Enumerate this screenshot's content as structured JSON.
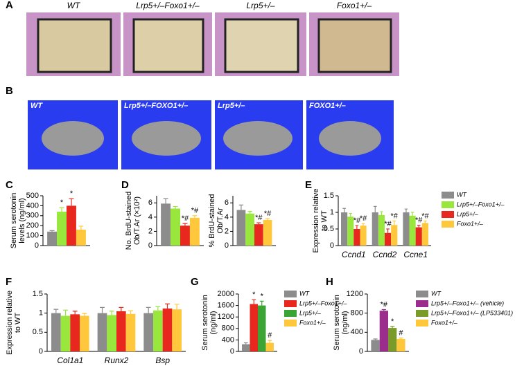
{
  "panel_a": {
    "label": "A",
    "captions": [
      "WT",
      "Lrp5+/–Foxo1+/–",
      "Lrp5+/–",
      "Foxo1+/–"
    ]
  },
  "panel_b": {
    "label": "B",
    "captions": [
      "WT",
      "Lrp5+/–FOXO1+/–",
      "Lrp5+/–",
      "FOXO1+/–"
    ]
  },
  "chart_data": [
    {
      "type": "bar",
      "panel": "C",
      "ylabel": [
        "Serum serotonin",
        "levels (ng/ml)"
      ],
      "ylim": [
        0,
        500
      ],
      "yticks": [
        0,
        100,
        200,
        300,
        400,
        500
      ],
      "series": [
        {
          "color": "#8c8c8c",
          "values": [
            140
          ],
          "errors": [
            10
          ],
          "significance": [
            null
          ]
        },
        {
          "color": "#99e63c",
          "values": [
            340
          ],
          "errors": [
            40
          ],
          "significance": [
            "*"
          ]
        },
        {
          "color": "#e8281e",
          "values": [
            400
          ],
          "errors": [
            70
          ],
          "significance": [
            "*"
          ]
        },
        {
          "color": "#ffc83c",
          "values": [
            160
          ],
          "errors": [
            35
          ],
          "significance": [
            null
          ]
        }
      ]
    },
    {
      "type": "bar",
      "panel": "D",
      "ylabel": [
        "No. BrdU-stained",
        "Ob/T.Ar (×10²)"
      ],
      "ylim": [
        0,
        7
      ],
      "yticks": [
        0,
        2,
        4,
        6
      ],
      "series": [
        {
          "color": "#8c8c8c",
          "values": [
            5.9
          ],
          "errors": [
            0.7
          ],
          "significance": [
            null
          ]
        },
        {
          "color": "#99e63c",
          "values": [
            5.2
          ],
          "errors": [
            0.3
          ],
          "significance": [
            null
          ]
        },
        {
          "color": "#e8281e",
          "values": [
            2.8
          ],
          "errors": [
            0.3
          ],
          "significance": [
            "*#"
          ]
        },
        {
          "color": "#ffc83c",
          "values": [
            3.9
          ],
          "errors": [
            0.3
          ],
          "significance": [
            "*#"
          ]
        }
      ]
    },
    {
      "type": "bar",
      "ylabel": [
        "% BrdU-stained",
        "Ob/T.Ar"
      ],
      "ylim": [
        0,
        7
      ],
      "yticks": [
        0,
        2,
        4,
        6
      ],
      "series": [
        {
          "color": "#8c8c8c",
          "values": [
            5.0
          ],
          "errors": [
            0.7
          ],
          "significance": [
            null
          ]
        },
        {
          "color": "#99e63c",
          "values": [
            4.5
          ],
          "errors": [
            0.3
          ],
          "significance": [
            null
          ]
        },
        {
          "color": "#e8281e",
          "values": [
            3.0
          ],
          "errors": [
            0.2
          ],
          "significance": [
            "*#"
          ]
        },
        {
          "color": "#ffc83c",
          "values": [
            3.6
          ],
          "errors": [
            0.2
          ],
          "significance": [
            "*#"
          ]
        }
      ]
    },
    {
      "type": "bar",
      "panel": "E",
      "ylabel": [
        "Expression relative",
        "to WT"
      ],
      "ylim": [
        0,
        1.5
      ],
      "yticks": [
        0,
        0.5,
        1,
        1.5
      ],
      "categories": [
        "Ccnd1",
        "Ccnd2",
        "Ccne1"
      ],
      "series": [
        {
          "name": "WT",
          "color": "#8c8c8c",
          "values": [
            1.0,
            1.0,
            1.0
          ],
          "errors": [
            0.12,
            0.18,
            0.1
          ],
          "significance": [
            null,
            null,
            null
          ]
        },
        {
          "name": "Lrp5+/–Foxo1+/–",
          "color": "#99e63c",
          "values": [
            0.87,
            0.92,
            0.9
          ],
          "errors": [
            0.1,
            0.1,
            0.1
          ],
          "significance": [
            null,
            null,
            null
          ]
        },
        {
          "name": "Lrp5+/–",
          "color": "#e8281e",
          "values": [
            0.5,
            0.38,
            0.55
          ],
          "errors": [
            0.1,
            0.12,
            0.06
          ],
          "significance": [
            "*#",
            "*#",
            "*#"
          ]
        },
        {
          "name": "Foxo1+/–",
          "color": "#ffc83c",
          "values": [
            0.6,
            0.62,
            0.68
          ],
          "errors": [
            0.06,
            0.12,
            0.06
          ],
          "significance": [
            "*#",
            "*#",
            "*#"
          ]
        }
      ]
    },
    {
      "type": "bar",
      "panel": "F",
      "ylabel": [
        "Expression relative",
        "to WT"
      ],
      "ylim": [
        0,
        1.5
      ],
      "yticks": [
        0,
        0.5,
        1,
        1.5
      ],
      "categories": [
        "Col1a1",
        "Runx2",
        "Bsp"
      ],
      "series": [
        {
          "color": "#8c8c8c",
          "values": [
            1.0,
            1.0,
            1.0
          ],
          "errors": [
            0.1,
            0.15,
            0.15
          ],
          "significance": [
            null,
            null,
            null
          ]
        },
        {
          "color": "#99e63c",
          "values": [
            0.93,
            0.95,
            1.07
          ],
          "errors": [
            0.15,
            0.1,
            0.1
          ],
          "significance": [
            null,
            null,
            null
          ]
        },
        {
          "color": "#e8281e",
          "values": [
            0.97,
            1.05,
            1.12
          ],
          "errors": [
            0.08,
            0.1,
            0.12
          ],
          "significance": [
            null,
            null,
            null
          ]
        },
        {
          "color": "#ffc83c",
          "values": [
            0.93,
            0.98,
            1.1
          ],
          "errors": [
            0.06,
            0.08,
            0.13
          ],
          "significance": [
            null,
            null,
            null
          ]
        }
      ]
    },
    {
      "type": "bar",
      "panel": "G",
      "ylabel": [
        "Serum serotonin",
        "(ng/ml)"
      ],
      "ylim": [
        0,
        2000
      ],
      "yticks": [
        0,
        400,
        800,
        1200,
        1600,
        2000
      ],
      "series": [
        {
          "name": "WT",
          "color": "#8c8c8c",
          "values": [
            250
          ],
          "errors": [
            50
          ],
          "significance": [
            null
          ]
        },
        {
          "name": "Lrp5+/–Foxo1+/–",
          "color": "#e8281e",
          "values": [
            1650
          ],
          "errors": [
            150
          ],
          "significance": [
            "*"
          ]
        },
        {
          "name": "Lrp5+/–",
          "color": "#3aa535",
          "values": [
            1600
          ],
          "errors": [
            150
          ],
          "significance": [
            "*"
          ]
        },
        {
          "name": "Foxo1+/–",
          "color": "#ffc83c",
          "values": [
            300
          ],
          "errors": [
            80
          ],
          "significance": [
            "#"
          ]
        }
      ]
    },
    {
      "type": "bar",
      "panel": "H",
      "ylabel": [
        "Serum serotonin",
        "(ng/ml)"
      ],
      "ylim": [
        0,
        1200
      ],
      "yticks": [
        0,
        400,
        800,
        1200
      ],
      "series": [
        {
          "name": "WT",
          "color": "#8c8c8c",
          "values": [
            240
          ],
          "errors": [
            20
          ],
          "significance": [
            null
          ]
        },
        {
          "name": "Lrp5+/–Foxo1+/– (vehicle)",
          "color": "#9b2d8c",
          "values": [
            850
          ],
          "errors": [
            25
          ],
          "significance": [
            "*#"
          ]
        },
        {
          "name": "Lrp5+/–Foxo1+/– (LP533401)",
          "color": "#7a9a2a",
          "values": [
            490
          ],
          "errors": [
            30
          ],
          "significance": [
            "*"
          ]
        },
        {
          "name": "Foxo1+/–",
          "color": "#ffc83c",
          "values": [
            260
          ],
          "errors": [
            20
          ],
          "significance": [
            "#"
          ]
        }
      ]
    }
  ]
}
